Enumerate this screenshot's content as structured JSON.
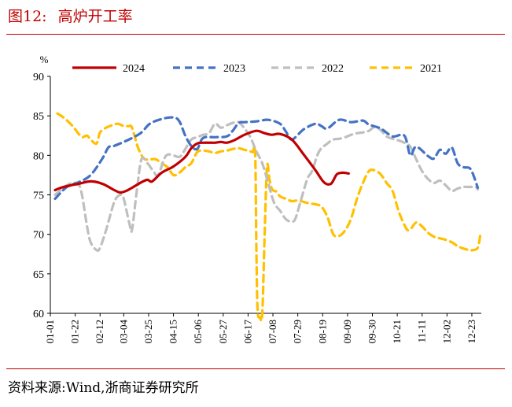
{
  "figure": {
    "number": "图12:",
    "title": "高炉开工率",
    "source": "资料来源:Wind,浙商证券研究所"
  },
  "colors": {
    "accent": "#c00000",
    "s2024": "#c00000",
    "s2023": "#4472c4",
    "s2022": "#bfbfbf",
    "s2021": "#ffc000"
  },
  "chart_data": {
    "type": "line",
    "ylabel": "%",
    "ylim": [
      60,
      90
    ],
    "yticks": [
      60,
      65,
      70,
      75,
      80,
      85,
      90
    ],
    "xlim": [
      1,
      365
    ],
    "xticks": [
      "01-01",
      "01-22",
      "02-12",
      "03-04",
      "03-25",
      "04-15",
      "05-06",
      "05-27",
      "06-17",
      "07-08",
      "07-29",
      "08-19",
      "09-09",
      "09-30",
      "10-21",
      "11-11",
      "12-02",
      "12-23"
    ],
    "xtick_days": [
      1,
      22,
      43,
      63,
      84,
      105,
      126,
      147,
      168,
      189,
      210,
      231,
      252,
      273,
      294,
      315,
      336,
      357
    ],
    "legend_position": "top",
    "grid": false,
    "series": [
      {
        "name": "2024",
        "style": "solid",
        "color": "#c00000",
        "x": [
          5,
          10,
          18,
          25,
          35,
          45,
          55,
          60,
          65,
          70,
          78,
          83,
          87,
          95,
          105,
          115,
          120,
          125,
          130,
          140,
          145,
          150,
          156,
          165,
          175,
          182,
          188,
          195,
          205,
          215,
          225,
          232,
          238,
          243,
          248,
          253
        ],
        "y": [
          75.6,
          75.9,
          76.2,
          76.4,
          76.7,
          76.4,
          75.6,
          75.3,
          75.5,
          75.9,
          76.6,
          76.9,
          76.7,
          77.8,
          78.6,
          79.8,
          80.9,
          81.5,
          81.6,
          81.6,
          81.7,
          81.6,
          81.9,
          82.6,
          83.1,
          82.8,
          82.6,
          82.7,
          82.0,
          80.1,
          78.1,
          76.6,
          76.4,
          77.6,
          77.8,
          77.7
        ]
      },
      {
        "name": "2023",
        "style": "dashed",
        "color": "#4472c4",
        "x": [
          5,
          15,
          25,
          35,
          45,
          50,
          55,
          63,
          70,
          78,
          85,
          95,
          105,
          110,
          115,
          120,
          125,
          130,
          140,
          150,
          155,
          160,
          165,
          175,
          185,
          195,
          200,
          205,
          215,
          225,
          230,
          235,
          245,
          255,
          265,
          270,
          280,
          290,
          300,
          305,
          310,
          320,
          325,
          330,
          335,
          340,
          345,
          350,
          355,
          358,
          362
        ],
        "y": [
          74.5,
          76.0,
          76.6,
          77.5,
          79.6,
          81.0,
          81.2,
          81.7,
          82.2,
          82.9,
          84.0,
          84.6,
          84.8,
          84.3,
          82.5,
          81.2,
          80.8,
          82.2,
          82.3,
          82.4,
          83.1,
          84.1,
          84.2,
          84.3,
          84.5,
          84.0,
          83.0,
          82.0,
          83.3,
          84.0,
          83.7,
          83.4,
          84.5,
          84.2,
          84.4,
          83.9,
          83.4,
          82.4,
          82.5,
          80.0,
          81.1,
          79.9,
          79.6,
          80.7,
          80.2,
          81.0,
          79.0,
          78.5,
          78.4,
          77.6,
          75.9
        ]
      },
      {
        "name": "2022",
        "style": "dashed",
        "color": "#bfbfbf",
        "x": [
          5,
          15,
          20,
          25,
          28,
          32,
          35,
          40,
          43,
          48,
          55,
          60,
          63,
          68,
          70,
          74,
          78,
          83,
          88,
          92,
          98,
          103,
          110,
          115,
          120,
          125,
          130,
          135,
          140,
          145,
          150,
          155,
          160,
          165,
          170,
          175,
          180,
          185,
          190,
          195,
          200,
          205,
          208,
          212,
          218,
          222,
          228,
          235,
          240,
          245,
          250,
          255,
          260,
          265,
          270,
          275,
          280,
          285,
          290,
          295,
          300,
          305,
          310,
          315,
          320,
          325,
          330,
          335,
          340,
          345,
          350,
          355,
          360,
          362
        ],
        "y": [
          75.0,
          76.2,
          76.5,
          76.3,
          74.8,
          71.0,
          69.0,
          68.0,
          68.3,
          70.5,
          74.1,
          75.0,
          74.5,
          71.2,
          70.6,
          75.5,
          79.5,
          79.0,
          78.0,
          77.5,
          79.8,
          80.1,
          79.8,
          80.8,
          82.0,
          82.3,
          82.6,
          82.8,
          84.0,
          83.5,
          83.8,
          84.1,
          84.2,
          83.4,
          82.3,
          80.5,
          79.0,
          76.5,
          74.0,
          73.0,
          71.9,
          71.6,
          72.0,
          74.0,
          77.0,
          78.0,
          80.5,
          81.5,
          82.0,
          82.1,
          82.3,
          82.6,
          82.8,
          82.9,
          83.1,
          83.6,
          83.2,
          82.4,
          82.1,
          81.9,
          81.6,
          81.1,
          79.5,
          78.0,
          77.0,
          76.5,
          76.8,
          76.2,
          75.5,
          75.8,
          76.0,
          76.0,
          76.0,
          75.7
        ]
      },
      {
        "name": "2021",
        "style": "dashed",
        "color": "#ffc000",
        "x": [
          7,
          12,
          18,
          22,
          25,
          28,
          32,
          35,
          40,
          43,
          48,
          53,
          58,
          63,
          67,
          70,
          75,
          80,
          85,
          90,
          95,
          100,
          105,
          110,
          115,
          120,
          125,
          130,
          135,
          140,
          145,
          150,
          155,
          160,
          165,
          168,
          170,
          172,
          174,
          175,
          176,
          178,
          180,
          182,
          184,
          186,
          188,
          190,
          192,
          195,
          200,
          205,
          210,
          215,
          220,
          225,
          230,
          235,
          240,
          245,
          250,
          255,
          260,
          265,
          270,
          275,
          280,
          285,
          290,
          295,
          300,
          303,
          306,
          310,
          315,
          320,
          325,
          330,
          335,
          340,
          345,
          350,
          355,
          358,
          362,
          364
        ],
        "y": [
          85.3,
          84.8,
          84.0,
          83.3,
          82.7,
          82.3,
          82.5,
          82.0,
          81.5,
          82.9,
          83.5,
          83.8,
          84.0,
          83.7,
          83.7,
          83.5,
          81.0,
          79.6,
          79.5,
          79.5,
          79.0,
          78.5,
          77.5,
          77.8,
          78.5,
          79.0,
          80.4,
          80.6,
          80.5,
          80.3,
          80.5,
          80.6,
          80.8,
          80.9,
          80.7,
          80.6,
          80.5,
          80.4,
          80.2,
          68.0,
          60.5,
          59.5,
          60.0,
          70.0,
          78.6,
          77.0,
          75.8,
          75.5,
          75.4,
          74.8,
          74.5,
          74.2,
          74.3,
          74.1,
          73.9,
          73.8,
          73.5,
          72.2,
          70.0,
          69.8,
          70.5,
          72.0,
          74.5,
          76.5,
          78.0,
          78.1,
          77.6,
          76.5,
          75.5,
          73.0,
          71.2,
          70.5,
          70.8,
          71.5,
          71.0,
          70.2,
          69.7,
          69.5,
          69.3,
          69.0,
          68.5,
          68.2,
          68.0,
          68.0,
          68.3,
          69.8
        ]
      }
    ]
  }
}
